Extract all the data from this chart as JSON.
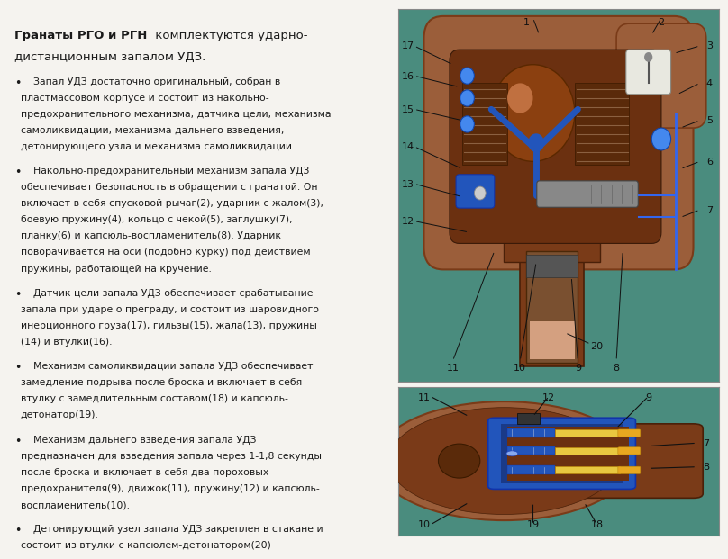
{
  "background_color": "#f5f3ef",
  "text_color": "#1a1a1a",
  "title_bold_part": "Гранаты РГО и РГН",
  "title_normal_part": " комплектуются ударно-\nдистанционным запалом УДЗ.",
  "bullets": [
    "Запал УДЗ достаточно оригинальный, собран в\nпластмассовом корпусе и состоит из накольно-\nпредохранительного механизма, датчика цели, механизма\nсамоликвидации, механизма дальнего взведения,\nдетонирующего узла и механизма самоликвидации.",
    "Накольно-предохранительный механизм запала УДЗ\nобеспечивает безопасность в обращении с гранатой. Он\nвключает в себя спусковой рычаг(2), ударник с жалом(3),\nбоевую пружину(4), кольцо с чекой(5), заглушку(7),\nпланку(6) и капсюль-воспламенитель(8). Ударник\nповорачивается на оси (подобно курку) под действием\nпружины, работающей на кручение.",
    "Датчик цели запала УДЗ обеспечивает срабатывание\nзапала при ударе о преграду, и состоит из шаровидного\nинерционного груза(17), гильзы(15), жала(13), пружины\n(14) и втулки(16).",
    "Механизм самоликвидации запала УДЗ обеспечивает\nзамедление подрыва после броска и включает в себя\nвтулку с замедлительным составом(18) и капсюль-\nдетонатор(19).",
    "Механизм дальнего взведения запала УДЗ\nпредназначен для взведения запала через 1-1,8 секунды\nпосле броска и включает в себя два пороховых\nпредохранителя(9), движок(11), пружину(12) и капсюль-\nвоспламенитель(10).",
    "Детонирующий узел запала УДЗ закреплен в стакане и\nсостоит из втулки с капсюлем-детонатором(20)"
  ],
  "image_bg": "#4a8c7e",
  "body_brown": "#9B5E3A",
  "body_dark": "#7A3B18",
  "body_inner": "#6B3010",
  "blue_main": "#2255BB",
  "blue_light": "#4477DD",
  "yellow_charge": "#E8C840",
  "label_color": "#111111",
  "font_size_body": 7.8,
  "font_size_label": 8.0
}
